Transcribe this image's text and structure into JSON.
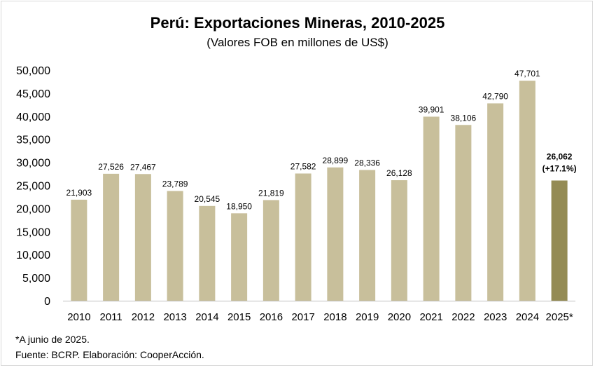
{
  "title": "Perú: Exportaciones Mineras, 2010-2025",
  "subtitle": "(Valores FOB en millones de US$)",
  "notes": {
    "footnote": "*A junio de 2025.",
    "source": "Fuente: BCRP. Elaboración: CooperAcción."
  },
  "colors": {
    "bar": "#c8bf9b",
    "highlight_bar": "#948b54"
  },
  "chart_data": {
    "type": "bar",
    "title": "Perú: Exportaciones Mineras, 2010-2025",
    "subtitle": "(Valores FOB en millones de US$)",
    "xlabel": "",
    "ylabel": "",
    "ylim": [
      0,
      50000
    ],
    "yticks": [
      "0",
      "5,000",
      "10,000",
      "15,000",
      "20,000",
      "25,000",
      "30,000",
      "35,000",
      "40,000",
      "45,000",
      "50,000"
    ],
    "ytick_values": [
      0,
      5000,
      10000,
      15000,
      20000,
      25000,
      30000,
      35000,
      40000,
      45000,
      50000
    ],
    "grid": false,
    "categories": [
      "2010",
      "2011",
      "2012",
      "2013",
      "2014",
      "2015",
      "2016",
      "2017",
      "2018",
      "2019",
      "2020",
      "2021",
      "2022",
      "2023",
      "2024",
      "2025*"
    ],
    "values": [
      21903,
      27526,
      27467,
      23789,
      20545,
      18950,
      21819,
      27582,
      28899,
      28336,
      26128,
      39901,
      38106,
      42790,
      47701,
      26062
    ],
    "labels": [
      "21,903",
      "27,526",
      "27,467",
      "23,789",
      "20,545",
      "18,950",
      "21,819",
      "27,582",
      "28,899",
      "28,336",
      "26,128",
      "39,901",
      "38,106",
      "42,790",
      "47,701",
      "26,062"
    ],
    "highlight_index": 15,
    "highlight_annotation": "(+17.1%)"
  }
}
